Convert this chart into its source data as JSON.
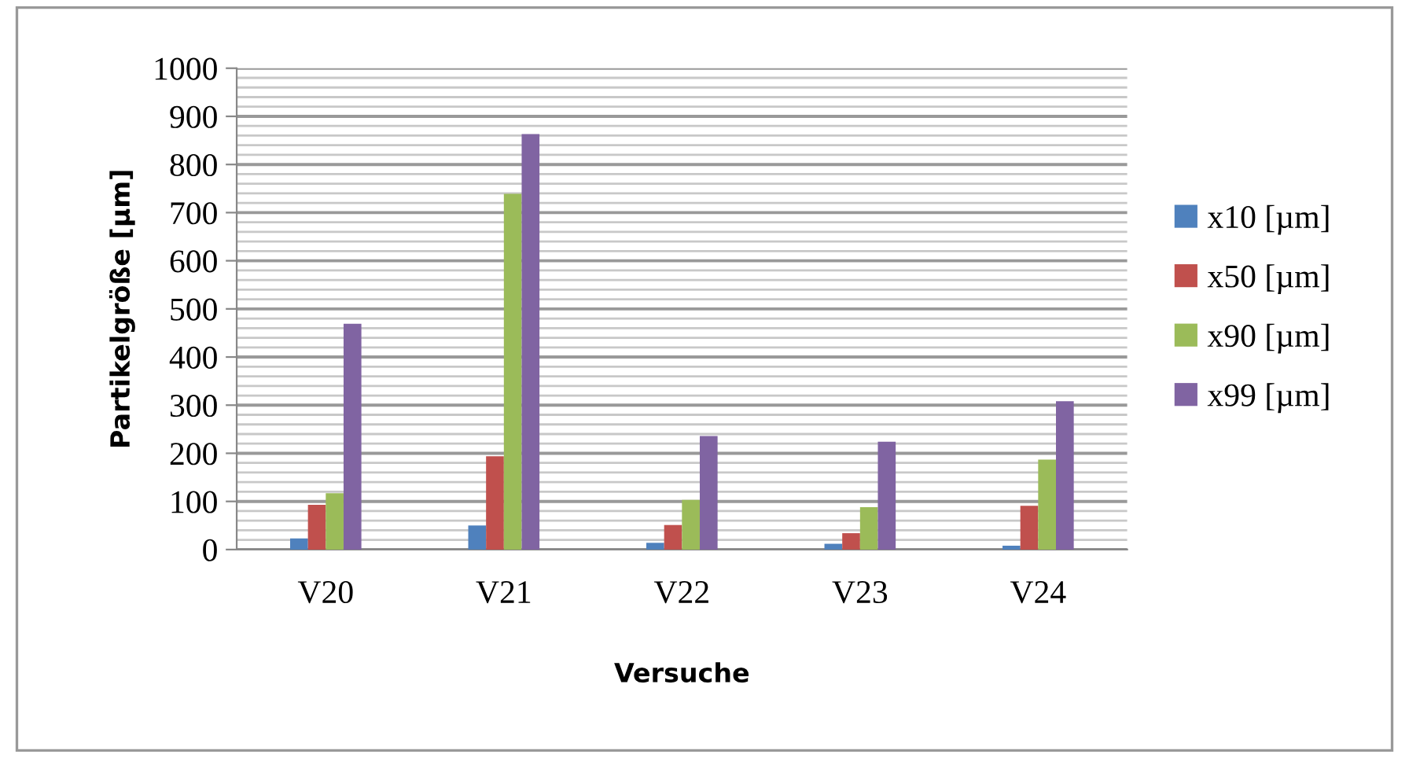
{
  "chart_data": {
    "type": "bar",
    "xlabel": "Versuche",
    "ylabel": "Partikelgröße [µm]",
    "categories": [
      "V20",
      "V21",
      "V22",
      "V23",
      "V24"
    ],
    "series": [
      {
        "name": "x10 [µm]",
        "color": "#4f81bd",
        "values": [
          23,
          50,
          14,
          12,
          8
        ]
      },
      {
        "name": "x50 [µm]",
        "color": "#c0504d",
        "values": [
          93,
          194,
          51,
          34,
          91
        ]
      },
      {
        "name": "x90 [µm]",
        "color": "#9bbb59",
        "values": [
          117,
          739,
          103,
          88,
          187
        ]
      },
      {
        "name": "x99 [µm]",
        "color": "#8064a2",
        "values": [
          469,
          863,
          236,
          224,
          308
        ]
      }
    ],
    "ylim": [
      0,
      1000
    ],
    "yticks": [
      0,
      100,
      200,
      300,
      400,
      500,
      600,
      700,
      800,
      900,
      1000
    ],
    "grid": "y",
    "legend": "right"
  }
}
